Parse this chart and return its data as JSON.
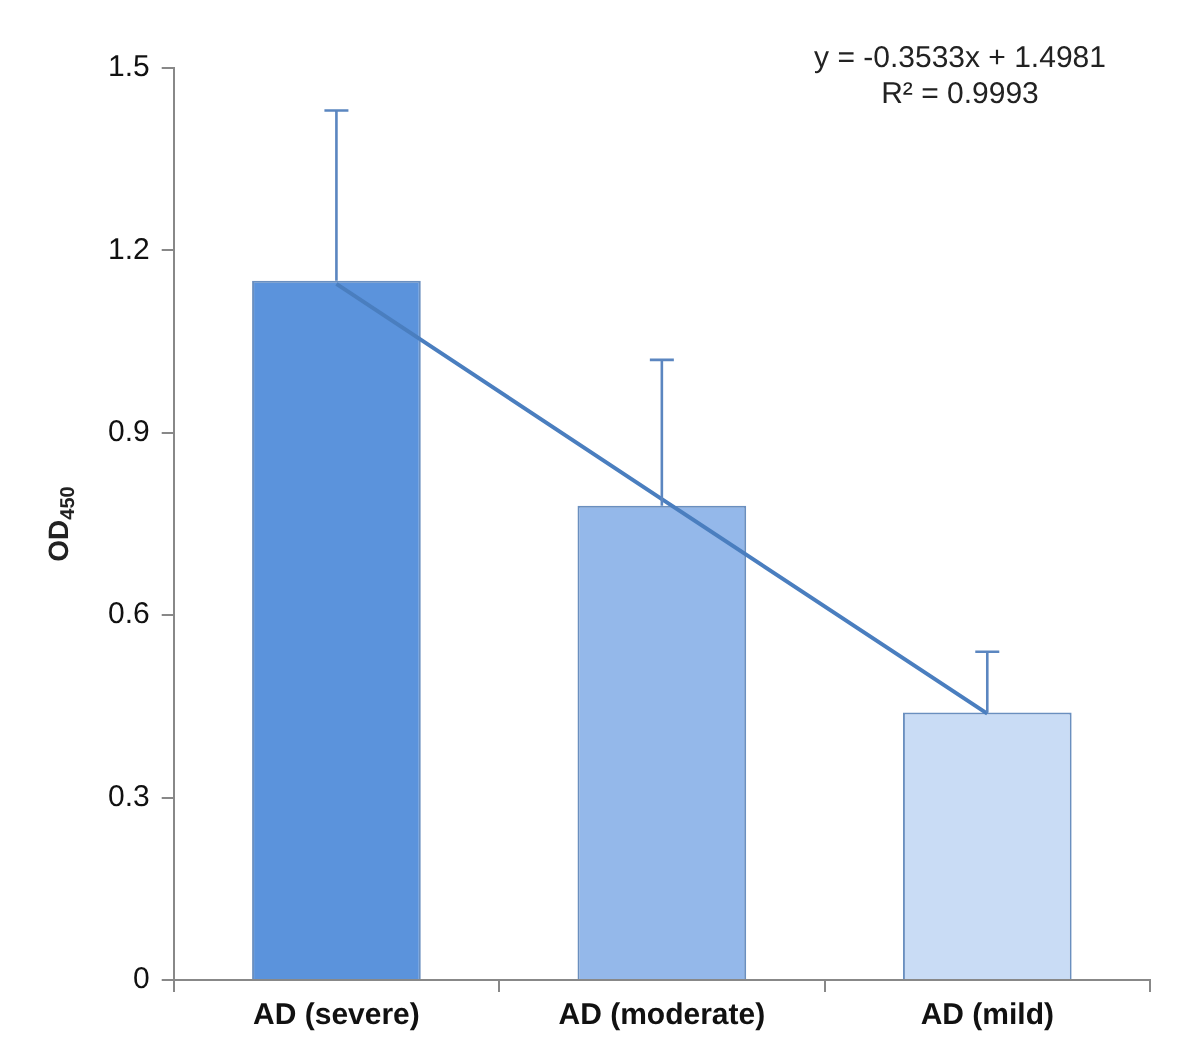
{
  "chart_data": {
    "type": "bar",
    "ylabel": "OD$_{450}$",
    "categories": [
      "AD (severe)",
      "AD (moderate)",
      "AD (mild)"
    ],
    "series": [
      {
        "colors": [
          "#5b93dc",
          "#94b8ea",
          "#c9dcf5"
        ],
        "values": [
          1.15,
          0.78,
          0.44
        ],
        "errors": [
          [
            1.15,
            1.43
          ],
          [
            0.78,
            1.02
          ],
          [
            0.44,
            0.54
          ]
        ]
      },
      {
        "type": "line",
        "color": "#4a7ebf",
        "x": [
          "AD (severe)",
          "AD (moderate)",
          "AD (mild)"
        ],
        "values": [
          1.145,
          0.791,
          0.438
        ],
        "marker": "none"
      }
    ],
    "ylim": [
      0,
      1.5
    ],
    "yticks": [
      0,
      0.3,
      0.6,
      0.9,
      1.2,
      1.5
    ],
    "grid": false,
    "annotations": [
      "y = -0.3533x + 1.4981",
      "R² = 0.9993"
    ]
  }
}
